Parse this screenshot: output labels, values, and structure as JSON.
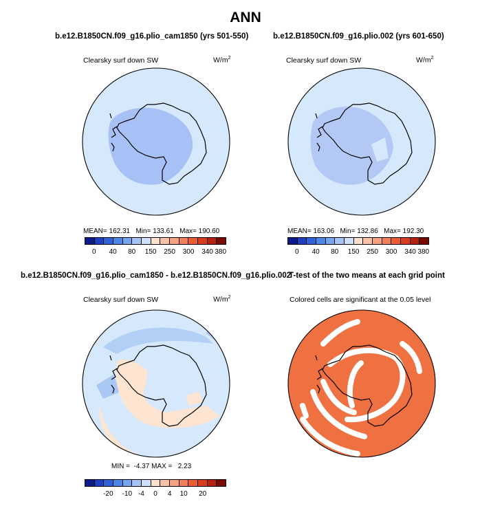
{
  "figure": {
    "title": "ANN"
  },
  "chart_data": [
    {
      "type": "heatmap",
      "title": "b.e12.B1850CN.f09_g16.plio_cam1850 (yrs 501-550)",
      "variable": "Clearsky surf down SW",
      "units": "W/m",
      "units_exp": "2",
      "stats": {
        "mean_label": "MEAN=",
        "mean": "162.31",
        "min_label": "Min=",
        "min": "133.61",
        "max_label": "Max=",
        "max": "190.60"
      },
      "colorbar": {
        "ticks": [
          "0",
          "40",
          "80",
          "150",
          "250",
          "300",
          "340",
          "380"
        ],
        "colors": [
          "#0d1a8c",
          "#1e3fbf",
          "#2e63d9",
          "#4a87e8",
          "#76a5ef",
          "#a4c4f5",
          "#cfe0fa",
          "#ffe3cf",
          "#fcc2a6",
          "#f7a27f",
          "#f28058",
          "#ed5b33",
          "#da3b1d",
          "#b5200f",
          "#7a0a00"
        ]
      }
    },
    {
      "type": "heatmap",
      "title": "b.e12.B1850CN.f09_g16.plio.002 (yrs 601-650)",
      "variable": "Clearsky surf down SW",
      "units": "W/m",
      "units_exp": "2",
      "stats": {
        "mean_label": "MEAN=",
        "mean": "163.06",
        "min_label": "Min=",
        "min": "132.86",
        "max_label": "Max=",
        "max": "192.30"
      },
      "colorbar": {
        "ticks": [
          "0",
          "40",
          "80",
          "150",
          "250",
          "300",
          "340",
          "380"
        ],
        "colors": [
          "#0d1a8c",
          "#1e3fbf",
          "#2e63d9",
          "#4a87e8",
          "#76a5ef",
          "#a4c4f5",
          "#cfe0fa",
          "#ffe3cf",
          "#fcc2a6",
          "#f7a27f",
          "#f28058",
          "#ed5b33",
          "#da3b1d",
          "#b5200f",
          "#7a0a00"
        ]
      }
    },
    {
      "type": "heatmap",
      "title": "b.e12.B1850CN.f09_g16.plio_cam1850 - b.e12.B1850CN.f09_g16.plio.002",
      "variable": "Clearsky surf down SW",
      "units": "W/m",
      "units_exp": "2",
      "stats": {
        "min_label": "MIN =",
        "min": "-4.37",
        "max_label": "MAX =",
        "max": "2.23"
      },
      "colorbar": {
        "ticks": [
          "-20",
          "-10",
          "-4",
          "0",
          "4",
          "10",
          "20"
        ],
        "colors": [
          "#0d1a8c",
          "#1e3fbf",
          "#2e63d9",
          "#4a87e8",
          "#76a5ef",
          "#a4c4f5",
          "#cfe0fa",
          "#ffe3cf",
          "#fcc2a6",
          "#f7a27f",
          "#f28058",
          "#ed5b33",
          "#da3b1d",
          "#b5200f",
          "#7a0a00"
        ]
      }
    },
    {
      "type": "heatmap",
      "title": "T-test of the two means at each grid point",
      "subtitle": "Colored cells are significant at the 0.05 level"
    }
  ],
  "colors": {
    "ocean_base": "#d6e8fb",
    "high_shade": "#b8cff8",
    "antarctic_blue": "#a7c0f5",
    "diff_neg": "#a9c8f4",
    "diff_pos": "#fde5d2",
    "ttest_sig": "#ef7040"
  }
}
